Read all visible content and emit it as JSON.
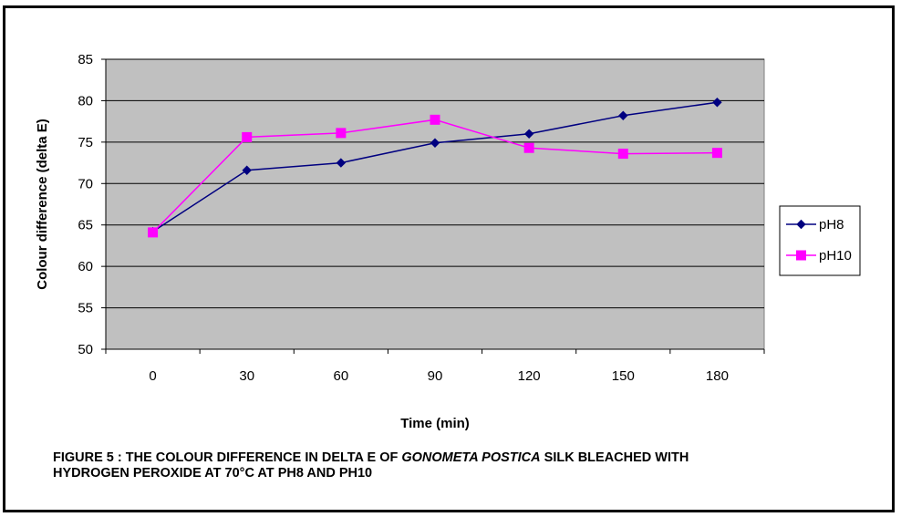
{
  "chart_data": {
    "type": "line",
    "xlabel": "Time (min)",
    "ylabel": "Colour difference (delta E)",
    "categories": [
      "0",
      "30",
      "60",
      "90",
      "120",
      "150",
      "180"
    ],
    "ylim": [
      50,
      85
    ],
    "yticks": [
      "50",
      "55",
      "60",
      "65",
      "70",
      "75",
      "80",
      "85"
    ],
    "grid": "horizontal",
    "legend_position": "right",
    "series": [
      {
        "name": "pH8",
        "color": "#000080",
        "marker": "diamond",
        "values": [
          64.2,
          71.6,
          72.5,
          74.9,
          76.0,
          78.2,
          79.8
        ]
      },
      {
        "name": "pH10",
        "color": "#ff00ff",
        "marker": "square",
        "values": [
          64.1,
          75.6,
          76.1,
          77.7,
          74.3,
          73.6,
          73.7
        ]
      }
    ]
  },
  "caption": {
    "prefix": "FIGURE 5 : THE COLOUR DIFFERENCE IN DELTA E OF ",
    "italic": "GONOMETA POSTICA",
    "suffix": " SILK BLEACHED WITH HYDROGEN PEROXIDE AT 70°C AT PH8 AND PH10"
  },
  "colors": {
    "plot_background": "#c0c0c0",
    "gridline": "#000000"
  }
}
